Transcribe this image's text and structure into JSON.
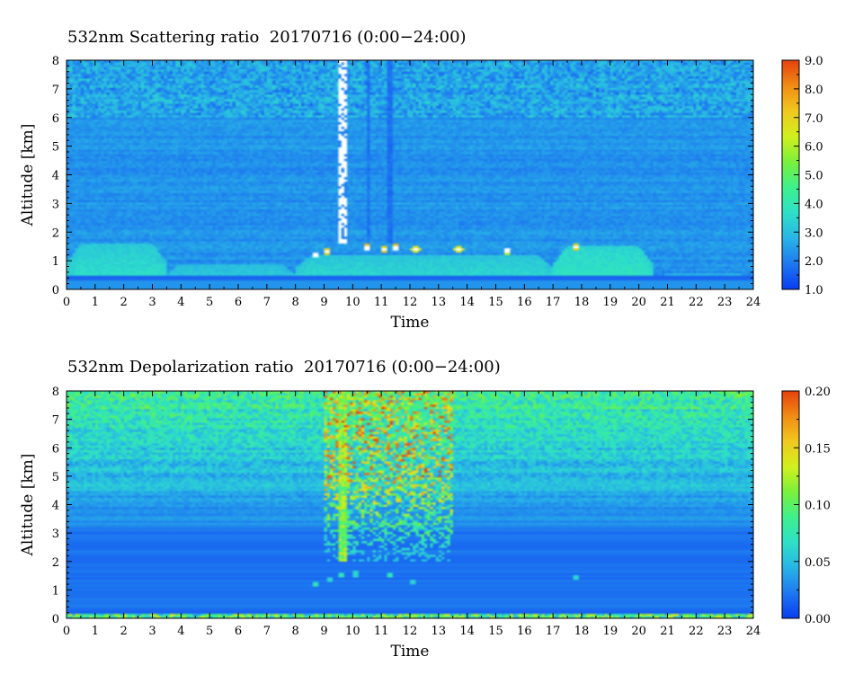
{
  "colormap": [
    "#0a3cf0",
    "#1e78f0",
    "#28b4e6",
    "#2ee0c8",
    "#3ef08c",
    "#7af03c",
    "#d2f01e",
    "#f0c81e",
    "#f08c14",
    "#e6410f"
  ],
  "chart_data": [
    {
      "type": "heatmap",
      "title": "532nm Scattering ratio  20170716 (0:00−24:00)",
      "xlabel": "Time",
      "ylabel": "Altitude [km]",
      "xlim": [
        0,
        24
      ],
      "ylim": [
        0,
        8
      ],
      "x_ticks": [
        "0",
        "1",
        "2",
        "3",
        "4",
        "5",
        "6",
        "7",
        "8",
        "9",
        "10",
        "11",
        "12",
        "13",
        "14",
        "15",
        "16",
        "17",
        "18",
        "19",
        "20",
        "21",
        "22",
        "23",
        "24"
      ],
      "y_ticks": [
        "0",
        "1",
        "2",
        "3",
        "4",
        "5",
        "6",
        "7",
        "8"
      ],
      "colorbar": {
        "range": [
          1.0,
          9.0
        ],
        "ticks": [
          "1.0",
          "2.0",
          "3.0",
          "4.0",
          "5.0",
          "6.0",
          "7.0",
          "8.0",
          "9.0"
        ]
      },
      "background_ratio": 2.3,
      "features": {
        "surface_layer": {
          "altitude_km": [
            0.3,
            0.45
          ],
          "ratio": 1.6
        },
        "boundary_layer": [
          {
            "time_h": [
              0.0,
              3.5
            ],
            "top_km": 1.6,
            "ratio": 3.8
          },
          {
            "time_h": [
              3.5,
              8.0
            ],
            "top_km": 0.9,
            "ratio": 3.5
          },
          {
            "time_h": [
              8.0,
              17.0
            ],
            "top_km": 1.2,
            "ratio": 3.7
          },
          {
            "time_h": [
              17.0,
              20.5
            ],
            "top_km": 1.5,
            "ratio": 4.0
          },
          {
            "time_h": [
              20.5,
              24.0
            ],
            "top_km": 0.55,
            "ratio": 3.4
          }
        ],
        "cloud_columns": [
          {
            "time_h": 9.65,
            "width_h": 0.3,
            "altitude_km": [
              1.6,
              8.0
            ],
            "ratio": 9.0
          },
          {
            "time_h": 10.55,
            "width_h": 0.15,
            "altitude_km": [
              1.6,
              8.0
            ],
            "ratio": 1.8
          },
          {
            "time_h": 11.3,
            "width_h": 0.15,
            "altitude_km": [
              1.6,
              8.0
            ],
            "ratio": 1.8
          }
        ],
        "low_clouds": [
          {
            "time_h": 8.7,
            "altitude_km": 1.2,
            "ratio": 7.5
          },
          {
            "time_h": 9.1,
            "altitude_km": 1.3,
            "ratio": 7.0
          },
          {
            "time_h": 10.5,
            "altitude_km": 1.45,
            "ratio": 7.5
          },
          {
            "time_h": 11.1,
            "altitude_km": 1.4,
            "ratio": 7.0
          },
          {
            "time_h": 11.5,
            "altitude_km": 1.45,
            "ratio": 7.5
          },
          {
            "time_h": 12.2,
            "altitude_km": 1.4,
            "ratio": 6.5
          },
          {
            "time_h": 13.7,
            "altitude_km": 1.4,
            "ratio": 6.5
          },
          {
            "time_h": 15.4,
            "altitude_km": 1.35,
            "ratio": 6.0
          },
          {
            "time_h": 17.8,
            "altitude_km": 1.5,
            "ratio": 7.0
          }
        ],
        "noise_top_km": 6.0
      }
    },
    {
      "type": "heatmap",
      "title": "532nm Depolarization ratio  20170716 (0:00−24:00)",
      "xlabel": "Time",
      "ylabel": "Altitude [km]",
      "xlim": [
        0,
        24
      ],
      "ylim": [
        0,
        8
      ],
      "x_ticks": [
        "0",
        "1",
        "2",
        "3",
        "4",
        "5",
        "6",
        "7",
        "8",
        "9",
        "10",
        "11",
        "12",
        "13",
        "14",
        "15",
        "16",
        "17",
        "18",
        "19",
        "20",
        "21",
        "22",
        "23",
        "24"
      ],
      "y_ticks": [
        "0",
        "1",
        "2",
        "3",
        "4",
        "5",
        "6",
        "7",
        "8"
      ],
      "colorbar": {
        "range": [
          0.0,
          0.2
        ],
        "ticks": [
          "0.00",
          "0.05",
          "0.10",
          "0.15",
          "0.20"
        ]
      },
      "background_ratio": 0.02,
      "features": {
        "surface_layer": {
          "altitude_km": [
            0.0,
            0.2
          ],
          "ratio": 0.1
        },
        "noisy_aloft_km": [
          3.0,
          8.0
        ],
        "ice_cloud_region": {
          "time_h": [
            9.0,
            13.5
          ],
          "altitude_km": [
            2.0,
            8.0
          ],
          "ratio": 0.15
        },
        "low_cloud_spots": [
          {
            "time_h": 8.7,
            "altitude_km": 1.2,
            "ratio": 0.07
          },
          {
            "time_h": 9.2,
            "altitude_km": 1.35,
            "ratio": 0.06
          },
          {
            "time_h": 9.6,
            "altitude_km": 1.5,
            "ratio": 0.07
          },
          {
            "time_h": 10.1,
            "altitude_km": 1.55,
            "ratio": 0.06
          },
          {
            "time_h": 11.3,
            "altitude_km": 1.5,
            "ratio": 0.07
          },
          {
            "time_h": 12.1,
            "altitude_km": 1.3,
            "ratio": 0.06
          },
          {
            "time_h": 17.8,
            "altitude_km": 1.45,
            "ratio": 0.06
          }
        ]
      }
    }
  ]
}
